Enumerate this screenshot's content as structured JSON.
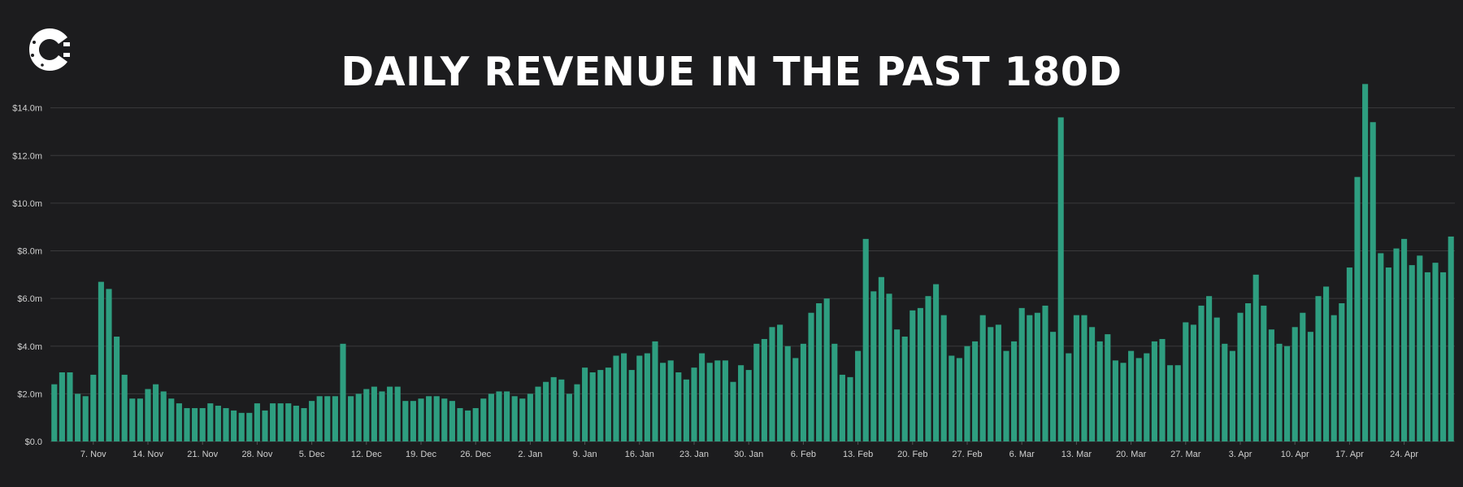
{
  "header": {
    "title": "DAILY REVENUE IN THE PAST 180D",
    "logo_icon": "cointelegraph-c-logo-icon"
  },
  "colors": {
    "background": "#1c1c1e",
    "bar": "#2e9e80",
    "grid": "#3a3a3c",
    "text": "#ffffff"
  },
  "chart_data": {
    "type": "bar",
    "title": "DAILY REVENUE IN THE PAST 180D",
    "xlabel": "",
    "ylabel": "",
    "unit": "$m",
    "ylim": [
      0,
      14.5
    ],
    "y_ticks": [
      0,
      2,
      4,
      6,
      8,
      10,
      12,
      14
    ],
    "y_tick_labels": [
      "$0.0",
      "$2.0m",
      "$4.0m",
      "$6.0m",
      "$8.0m",
      "$10.0m",
      "$12.0m",
      "$14.0m"
    ],
    "x_tick_labels": [
      {
        "index": 5,
        "label": "7. Nov"
      },
      {
        "index": 12,
        "label": "14. Nov"
      },
      {
        "index": 19,
        "label": "21. Nov"
      },
      {
        "index": 26,
        "label": "28. Nov"
      },
      {
        "index": 33,
        "label": "5. Dec"
      },
      {
        "index": 40,
        "label": "12. Dec"
      },
      {
        "index": 47,
        "label": "19. Dec"
      },
      {
        "index": 54,
        "label": "26. Dec"
      },
      {
        "index": 61,
        "label": "2. Jan"
      },
      {
        "index": 68,
        "label": "9. Jan"
      },
      {
        "index": 75,
        "label": "16. Jan"
      },
      {
        "index": 82,
        "label": "23. Jan"
      },
      {
        "index": 89,
        "label": "30. Jan"
      },
      {
        "index": 96,
        "label": "6. Feb"
      },
      {
        "index": 103,
        "label": "13. Feb"
      },
      {
        "index": 110,
        "label": "20. Feb"
      },
      {
        "index": 117,
        "label": "27. Feb"
      },
      {
        "index": 124,
        "label": "6. Mar"
      },
      {
        "index": 131,
        "label": "13. Mar"
      },
      {
        "index": 138,
        "label": "20. Mar"
      },
      {
        "index": 145,
        "label": "27. Mar"
      },
      {
        "index": 152,
        "label": "3. Apr"
      },
      {
        "index": 159,
        "label": "10. Apr"
      },
      {
        "index": 166,
        "label": "17. Apr"
      },
      {
        "index": 173,
        "label": "24. Apr"
      }
    ],
    "values": [
      2.4,
      2.9,
      2.9,
      2.0,
      1.9,
      2.8,
      6.7,
      6.4,
      4.4,
      2.8,
      1.8,
      1.8,
      2.2,
      2.4,
      2.1,
      1.8,
      1.6,
      1.4,
      1.4,
      1.4,
      1.6,
      1.5,
      1.4,
      1.3,
      1.2,
      1.2,
      1.6,
      1.3,
      1.6,
      1.6,
      1.6,
      1.5,
      1.4,
      1.7,
      1.9,
      1.9,
      1.9,
      4.1,
      1.9,
      2.0,
      2.2,
      2.3,
      2.1,
      2.3,
      2.3,
      1.7,
      1.7,
      1.8,
      1.9,
      1.9,
      1.8,
      1.7,
      1.4,
      1.3,
      1.4,
      1.8,
      2.0,
      2.1,
      2.1,
      1.9,
      1.8,
      2.0,
      2.3,
      2.5,
      2.7,
      2.6,
      2.0,
      2.4,
      3.1,
      2.9,
      3.0,
      3.1,
      3.6,
      3.7,
      3.0,
      3.6,
      3.7,
      4.2,
      3.3,
      3.4,
      2.9,
      2.6,
      3.1,
      3.7,
      3.3,
      3.4,
      3.4,
      2.5,
      3.2,
      3.0,
      4.1,
      4.3,
      4.8,
      4.9,
      4.0,
      3.5,
      4.1,
      5.4,
      5.8,
      6.0,
      4.1,
      2.8,
      2.7,
      3.8,
      8.5,
      6.3,
      6.9,
      6.2,
      4.7,
      4.4,
      5.5,
      5.6,
      6.1,
      6.6,
      5.3,
      3.6,
      3.5,
      4.0,
      4.2,
      5.3,
      4.8,
      4.9,
      3.8,
      4.2,
      5.6,
      5.3,
      5.4,
      5.7,
      4.6,
      13.6,
      3.7,
      5.3,
      5.3,
      4.8,
      4.2,
      4.5,
      3.4,
      3.3,
      3.8,
      3.5,
      3.7,
      4.2,
      4.3,
      3.2,
      3.2,
      5.0,
      4.9,
      5.7,
      6.1,
      5.2,
      4.1,
      3.8,
      5.4,
      5.8,
      7.0,
      5.7,
      4.7,
      4.1,
      4.0,
      4.8,
      5.4,
      4.6,
      6.1,
      6.5,
      5.3,
      5.8,
      7.3,
      11.1,
      15.0,
      13.4,
      7.9,
      7.3,
      8.1,
      8.5,
      7.4,
      7.8,
      7.1,
      7.5,
      7.1,
      8.6
    ]
  }
}
